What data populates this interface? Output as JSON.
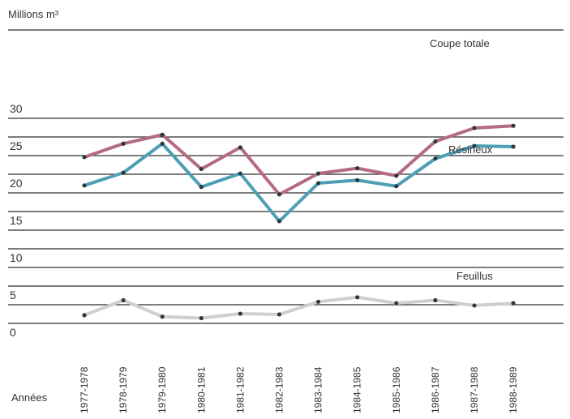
{
  "chart_data": {
    "type": "line",
    "unit_label": "Millions m³",
    "x_axis_label": "Années",
    "categories": [
      "1977-1978",
      "1978-1979",
      "1979-1980",
      "1980-1981",
      "1981-1982",
      "1982-1983",
      "1983-1984",
      "1984-1985",
      "1985-1986",
      "1986-1987",
      "1987-1988",
      "1988-1989"
    ],
    "yticks": [
      0,
      5,
      10,
      15,
      20,
      25,
      30
    ],
    "ylim": [
      0,
      31
    ],
    "grid": true,
    "series": [
      {
        "name": "Coupe totale",
        "color": "#b46a82",
        "values": [
          24.8,
          26.6,
          27.8,
          23.2,
          26.1,
          19.8,
          22.6,
          23.3,
          22.3,
          26.9,
          28.7,
          29.0
        ]
      },
      {
        "name": "Résineux",
        "color": "#4e9fb5",
        "values": [
          21.0,
          22.7,
          26.6,
          20.8,
          22.6,
          16.2,
          21.3,
          21.7,
          20.9,
          24.6,
          26.3,
          26.2
        ]
      },
      {
        "name": "Feuillus",
        "color": "#cfcfcf",
        "values": [
          3.6,
          5.6,
          3.4,
          3.2,
          3.8,
          3.7,
          5.4,
          6.0,
          5.2,
          5.6,
          4.9,
          5.2
        ]
      }
    ]
  }
}
